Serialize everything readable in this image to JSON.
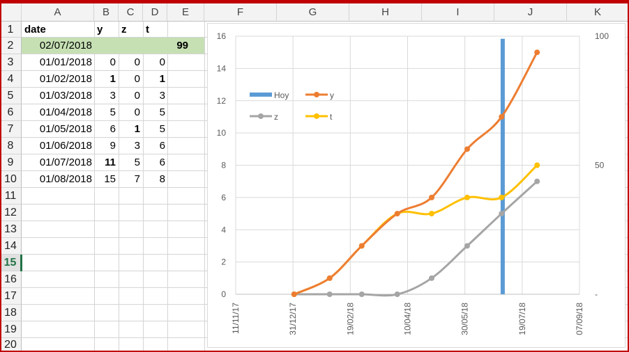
{
  "columns": [
    "A",
    "B",
    "C",
    "D",
    "E",
    "F",
    "G",
    "H",
    "I",
    "J",
    "K"
  ],
  "rows": [
    "1",
    "2",
    "3",
    "4",
    "5",
    "6",
    "7",
    "8",
    "9",
    "10",
    "11",
    "12",
    "13",
    "14",
    "15",
    "16",
    "17",
    "18",
    "19",
    "20"
  ],
  "selected_row": "15",
  "header_row": {
    "a": "date",
    "b": "y",
    "c": "z",
    "d": "t"
  },
  "row2": {
    "date": "02/07/2018",
    "e": "99",
    "fill_color": "#c6e0b4"
  },
  "table": [
    {
      "date": "01/01/2018",
      "y": "0",
      "z": "0",
      "t": "0",
      "y_bold": false,
      "z_bold": false,
      "t_bold": false
    },
    {
      "date": "01/02/2018",
      "y": "1",
      "z": "0",
      "t": "1",
      "y_bold": true,
      "z_bold": false,
      "t_bold": true
    },
    {
      "date": "01/03/2018",
      "y": "3",
      "z": "0",
      "t": "3",
      "y_bold": false,
      "z_bold": false,
      "t_bold": false
    },
    {
      "date": "01/04/2018",
      "y": "5",
      "z": "0",
      "t": "5",
      "y_bold": false,
      "z_bold": false,
      "t_bold": false
    },
    {
      "date": "01/05/2018",
      "y": "6",
      "z": "1",
      "t": "5",
      "y_bold": false,
      "z_bold": true,
      "t_bold": false
    },
    {
      "date": "01/06/2018",
      "y": "9",
      "z": "3",
      "t": "6",
      "y_bold": false,
      "z_bold": false,
      "t_bold": false
    },
    {
      "date": "01/07/2018",
      "y": "11",
      "z": "5",
      "t": "6",
      "y_bold": true,
      "z_bold": false,
      "t_bold": false
    },
    {
      "date": "01/08/2018",
      "y": "15",
      "z": "7",
      "t": "8",
      "y_bold": false,
      "z_bold": false,
      "t_bold": false
    }
  ],
  "colors": {
    "grid": "#d4d4d4",
    "header_bg": "#f3f3f3",
    "selection": "#217346",
    "frame": "#c00000"
  },
  "chart_data": {
    "type": "line",
    "x_type": "date",
    "x_ticks": [
      "11/11/17",
      "31/12/17",
      "19/02/18",
      "10/04/18",
      "30/05/18",
      "19/07/18",
      "07/09/18"
    ],
    "x_tick_dates": [
      "2017-11-11",
      "2017-12-31",
      "2018-02-19",
      "2018-04-10",
      "2018-05-30",
      "2018-07-19",
      "2018-09-07"
    ],
    "xlim": [
      "2017-11-11",
      "2018-09-07"
    ],
    "ylim": [
      0,
      16
    ],
    "y_ticks": [
      "0",
      "2",
      "4",
      "6",
      "8",
      "10",
      "12",
      "14",
      "16"
    ],
    "y_tick_values": [
      0,
      2,
      4,
      6,
      8,
      10,
      12,
      14,
      16
    ],
    "y2lim": [
      0,
      100
    ],
    "y2_ticks": [
      "-",
      "50",
      "100"
    ],
    "y2_tick_values": [
      0,
      50,
      100
    ],
    "grid": true,
    "legend_position": "upper-left",
    "series": [
      {
        "name": "Hoy",
        "kind": "bar",
        "axis": "secondary",
        "color": "#5b9bd5",
        "points": [
          {
            "x": "2018-07-02",
            "y": 99
          }
        ]
      },
      {
        "name": "y",
        "kind": "line",
        "axis": "primary",
        "color": "#ed7d31",
        "points": [
          {
            "x": "2018-01-01",
            "y": 0
          },
          {
            "x": "2018-02-01",
            "y": 1
          },
          {
            "x": "2018-03-01",
            "y": 3
          },
          {
            "x": "2018-04-01",
            "y": 5
          },
          {
            "x": "2018-05-01",
            "y": 6
          },
          {
            "x": "2018-06-01",
            "y": 9
          },
          {
            "x": "2018-07-01",
            "y": 11
          },
          {
            "x": "2018-08-01",
            "y": 15
          }
        ]
      },
      {
        "name": "z",
        "kind": "line",
        "axis": "primary",
        "color": "#a5a5a5",
        "points": [
          {
            "x": "2018-01-01",
            "y": 0
          },
          {
            "x": "2018-02-01",
            "y": 0
          },
          {
            "x": "2018-03-01",
            "y": 0
          },
          {
            "x": "2018-04-01",
            "y": 0
          },
          {
            "x": "2018-05-01",
            "y": 1
          },
          {
            "x": "2018-06-01",
            "y": 3
          },
          {
            "x": "2018-07-01",
            "y": 5
          },
          {
            "x": "2018-08-01",
            "y": 7
          }
        ]
      },
      {
        "name": "t",
        "kind": "line",
        "axis": "primary",
        "color": "#ffc000",
        "points": [
          {
            "x": "2018-01-01",
            "y": 0
          },
          {
            "x": "2018-02-01",
            "y": 1
          },
          {
            "x": "2018-03-01",
            "y": 3
          },
          {
            "x": "2018-04-01",
            "y": 5
          },
          {
            "x": "2018-05-01",
            "y": 5
          },
          {
            "x": "2018-06-01",
            "y": 6
          },
          {
            "x": "2018-07-01",
            "y": 6
          },
          {
            "x": "2018-08-01",
            "y": 8
          }
        ]
      }
    ]
  }
}
